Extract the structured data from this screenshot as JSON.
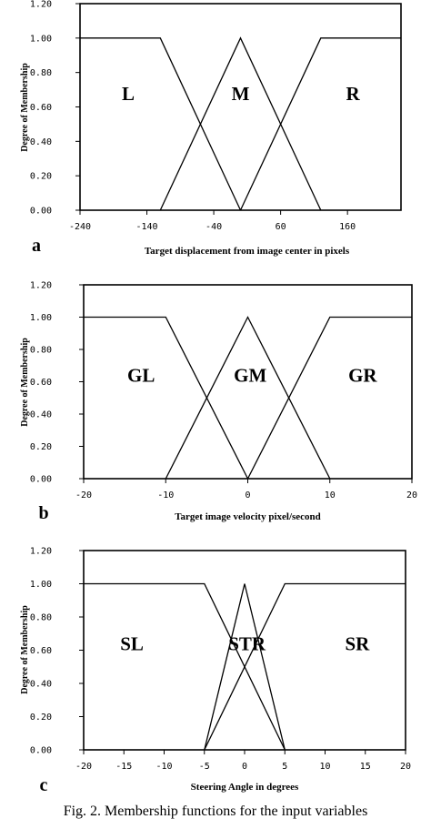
{
  "caption": "Fig. 2. Membership functions for the input variables",
  "chart_data": [
    {
      "type": "line",
      "panel": "a",
      "xlabel": "Target displacement from image center in pixels",
      "ylabel": "Degree of Membership",
      "xlim": [
        -240,
        240
      ],
      "ylim": [
        0,
        1.2
      ],
      "xticks": [
        -240,
        -140,
        -40,
        60,
        160
      ],
      "xtick_labels": [
        "-240",
        "-140",
        "-40",
        "60",
        "160"
      ],
      "yticks": [
        0,
        0.2,
        0.4,
        0.6,
        0.8,
        1.0,
        1.2
      ],
      "ytick_labels": [
        "0.00",
        "0.20",
        "0.40",
        "0.60",
        "0.80",
        "1.00",
        "1.20"
      ],
      "grid": false,
      "series": [
        {
          "name": "L",
          "x": [
            -240,
            -120,
            0
          ],
          "y": [
            1,
            1,
            0
          ]
        },
        {
          "name": "M",
          "x": [
            -120,
            0,
            120
          ],
          "y": [
            0,
            1,
            0
          ]
        },
        {
          "name": "R",
          "x": [
            0,
            120,
            240
          ],
          "y": [
            0,
            1,
            1
          ]
        }
      ],
      "labels": [
        {
          "text": "L",
          "x": -168,
          "y": 0.64
        },
        {
          "text": "M",
          "x": 0,
          "y": 0.64
        },
        {
          "text": "R",
          "x": 168,
          "y": 0.64
        }
      ]
    },
    {
      "type": "line",
      "panel": "b",
      "xlabel": "Target image velocity pixel/second",
      "ylabel": "Degree of Membership",
      "xlim": [
        -20,
        20
      ],
      "ylim": [
        0,
        1.2
      ],
      "xticks": [
        -20,
        -10,
        0,
        10,
        20
      ],
      "xtick_labels": [
        "-20",
        "-10",
        "0",
        "10",
        "20"
      ],
      "yticks": [
        0,
        0.2,
        0.4,
        0.6,
        0.8,
        1.0,
        1.2
      ],
      "ytick_labels": [
        "0.00",
        "0.20",
        "0.40",
        "0.60",
        "0.80",
        "1.00",
        "1.20"
      ],
      "grid": false,
      "series": [
        {
          "name": "GL",
          "x": [
            -20,
            -10,
            0
          ],
          "y": [
            1,
            1,
            0
          ]
        },
        {
          "name": "GM",
          "x": [
            -10,
            0,
            10
          ],
          "y": [
            0,
            1,
            0
          ]
        },
        {
          "name": "GR",
          "x": [
            0,
            10,
            20
          ],
          "y": [
            0,
            1,
            1
          ]
        }
      ],
      "labels": [
        {
          "text": "GL",
          "x": -13,
          "y": 0.6
        },
        {
          "text": "GM",
          "x": 0.3,
          "y": 0.6
        },
        {
          "text": "GR",
          "x": 14,
          "y": 0.6
        }
      ]
    },
    {
      "type": "line",
      "panel": "c",
      "xlabel": "Steering Angle in degrees",
      "ylabel": "Degree of Membership",
      "xlim": [
        -20,
        20
      ],
      "ylim": [
        0,
        1.2
      ],
      "xticks": [
        -20,
        -15,
        -10,
        -5,
        0,
        5,
        10,
        15,
        20
      ],
      "xtick_labels": [
        "-20",
        "-15",
        "-10",
        "-5",
        "0",
        "5",
        "10",
        "15",
        "20"
      ],
      "yticks": [
        0,
        0.2,
        0.4,
        0.6,
        0.8,
        1.0,
        1.2
      ],
      "ytick_labels": [
        "0.00",
        "0.20",
        "0.40",
        "0.60",
        "0.80",
        "1.00",
        "1.20"
      ],
      "grid": false,
      "series": [
        {
          "name": "SL",
          "x": [
            -20,
            -5,
            5
          ],
          "y": [
            1,
            1,
            0
          ]
        },
        {
          "name": "STR",
          "x": [
            -5,
            0,
            5
          ],
          "y": [
            0,
            1,
            0
          ]
        },
        {
          "name": "SR",
          "x": [
            -5,
            5,
            20
          ],
          "y": [
            0,
            1,
            1
          ]
        }
      ],
      "labels": [
        {
          "text": "SL",
          "x": -14,
          "y": 0.6
        },
        {
          "text": "STR",
          "x": 0.3,
          "y": 0.6
        },
        {
          "text": "SR",
          "x": 14,
          "y": 0.6
        }
      ]
    }
  ]
}
